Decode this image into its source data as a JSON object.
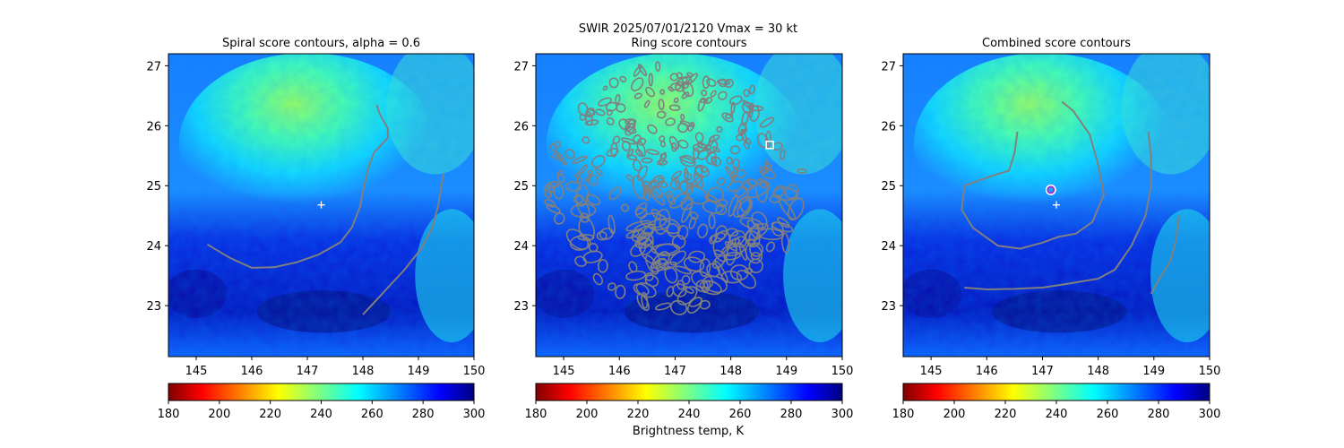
{
  "figure": {
    "suptitle_line1": "SWIR  2025/07/01/2120    Vmax = 30 kt"
  },
  "colorbar": {
    "label": "Brightness temp, K",
    "range": [
      180,
      300
    ],
    "ticks": [
      "180",
      "200",
      "220",
      "240",
      "260",
      "280",
      "300"
    ],
    "colormap": "jet_r"
  },
  "chart_data": [
    {
      "type": "heatmap",
      "title": "Spiral score contours, alpha =  0.6",
      "xlim": [
        144.5,
        150.0
      ],
      "ylim": [
        22.15,
        27.2
      ],
      "xticks": [
        "145",
        "146",
        "147",
        "148",
        "149",
        "150"
      ],
      "yticks": [
        "23",
        "24",
        "25",
        "26",
        "27"
      ],
      "markers": [
        {
          "kind": "plus",
          "color": "#ffffff",
          "x": 147.25,
          "y": 24.68
        }
      ],
      "contours": [
        {
          "color": "#808080",
          "points": [
            [
              145.2,
              24.02
            ],
            [
              145.6,
              23.8
            ],
            [
              146.0,
              23.63
            ],
            [
              146.4,
              23.64
            ],
            [
              146.8,
              23.72
            ],
            [
              147.2,
              23.85
            ],
            [
              147.6,
              24.06
            ],
            [
              147.8,
              24.3
            ],
            [
              147.95,
              24.65
            ],
            [
              148.02,
              25.0
            ],
            [
              148.1,
              25.3
            ],
            [
              148.2,
              25.55
            ],
            [
              148.45,
              25.8
            ],
            [
              148.45,
              25.95
            ],
            [
              148.3,
              26.2
            ],
            [
              148.25,
              26.35
            ]
          ]
        },
        {
          "color": "#808080",
          "points": [
            [
              148.0,
              22.85
            ],
            [
              148.2,
              23.05
            ],
            [
              148.45,
              23.3
            ],
            [
              148.75,
              23.6
            ],
            [
              149.05,
              23.95
            ],
            [
              149.25,
              24.3
            ],
            [
              149.35,
              24.65
            ],
            [
              149.4,
              24.9
            ],
            [
              149.45,
              25.2
            ]
          ]
        }
      ]
    },
    {
      "type": "heatmap",
      "title": "Ring score contours",
      "xlim": [
        144.5,
        150.0
      ],
      "ylim": [
        22.15,
        27.2
      ],
      "xticks": [
        "145",
        "146",
        "147",
        "148",
        "149",
        "150"
      ],
      "yticks": [
        "23",
        "24",
        "25",
        "26",
        "27"
      ],
      "markers": [
        {
          "kind": "square",
          "color": "#ffffff",
          "x": 148.7,
          "y": 25.68
        }
      ],
      "contour_region": {
        "center": [
          147.0,
          25.0
        ],
        "radius": [
          2.3,
          2.05
        ]
      }
    },
    {
      "type": "heatmap",
      "title": "Combined score contours",
      "xlim": [
        144.5,
        150.0
      ],
      "ylim": [
        22.15,
        27.2
      ],
      "xticks": [
        "145",
        "146",
        "147",
        "148",
        "149",
        "150"
      ],
      "yticks": [
        "23",
        "24",
        "25",
        "26",
        "27"
      ],
      "markers": [
        {
          "kind": "plus",
          "color": "#ffffff",
          "x": 147.25,
          "y": 24.68
        },
        {
          "kind": "circle",
          "color": "#9b30d0",
          "x": 147.15,
          "y": 24.93
        }
      ],
      "contours": [
        {
          "color": "#808080",
          "points": [
            [
              146.55,
              25.9
            ],
            [
              146.5,
              25.55
            ],
            [
              146.4,
              25.25
            ],
            [
              146.05,
              25.15
            ],
            [
              145.6,
              25.0
            ],
            [
              145.55,
              24.6
            ],
            [
              145.75,
              24.3
            ],
            [
              146.2,
              24.0
            ],
            [
              146.6,
              23.95
            ],
            [
              147.0,
              24.05
            ],
            [
              147.3,
              24.15
            ],
            [
              147.6,
              24.2
            ],
            [
              147.9,
              24.4
            ],
            [
              148.1,
              24.85
            ],
            [
              148.0,
              25.35
            ],
            [
              147.85,
              25.85
            ],
            [
              147.55,
              26.25
            ],
            [
              147.35,
              26.4
            ]
          ]
        },
        {
          "color": "#808080",
          "points": [
            [
              145.6,
              23.3
            ],
            [
              146.0,
              23.27
            ],
            [
              146.5,
              23.28
            ],
            [
              147.0,
              23.3
            ],
            [
              147.5,
              23.37
            ],
            [
              148.0,
              23.45
            ],
            [
              148.3,
              23.6
            ],
            [
              148.6,
              24.0
            ],
            [
              148.85,
              24.5
            ],
            [
              148.95,
              25.0
            ],
            [
              148.95,
              25.5
            ],
            [
              148.9,
              25.9
            ]
          ]
        },
        {
          "color": "#808080",
          "points": [
            [
              148.95,
              23.2
            ],
            [
              149.1,
              23.45
            ],
            [
              149.3,
              23.75
            ],
            [
              149.4,
              24.1
            ],
            [
              149.45,
              24.5
            ]
          ]
        }
      ]
    }
  ]
}
